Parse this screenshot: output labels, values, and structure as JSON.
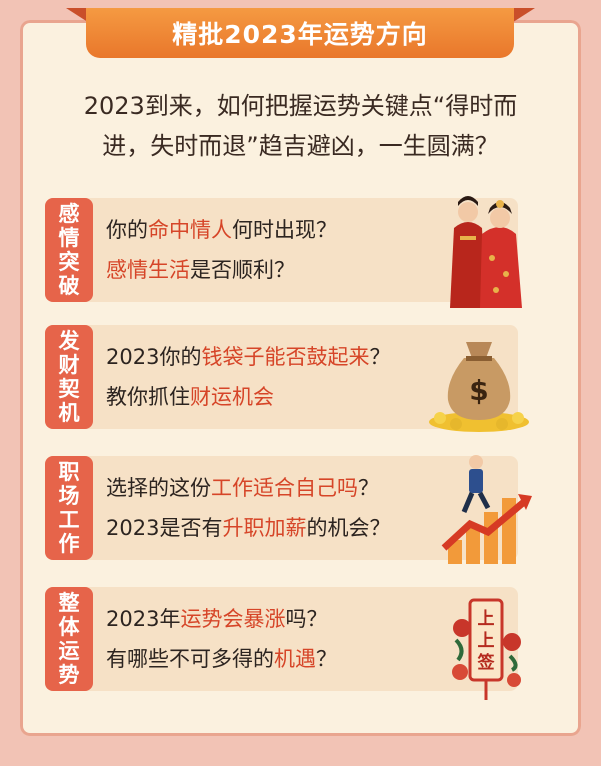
{
  "banner": {
    "title": "精批2023年运势方向"
  },
  "intro": {
    "line1": "2023到来，如何把握运势关键点“得时而",
    "line2": "进，失时而退”趋吉避凶，一生圆满？"
  },
  "cards": [
    {
      "tag": [
        "感",
        "情",
        "突",
        "破"
      ],
      "line1": {
        "a": "你的",
        "hl": "命中情人",
        "b": "何时出现？"
      },
      "line2": {
        "a": "",
        "hl": "感情生活",
        "b": "是否顺利？"
      },
      "icon": "wedding-couple-icon"
    },
    {
      "tag": [
        "发",
        "财",
        "契",
        "机"
      ],
      "line1": {
        "a": "2023你的",
        "hl": "钱袋子能否鼓起来",
        "b": "？"
      },
      "line2": {
        "a": "教你抓住",
        "hl": "财运机会",
        "b": ""
      },
      "icon": "money-bag-icon"
    },
    {
      "tag": [
        "职",
        "场",
        "工",
        "作"
      ],
      "line1": {
        "a": "选择的这份",
        "hl": "工作适合自己吗",
        "b": "？"
      },
      "line2": {
        "a": "2023是否有",
        "hl": "升职加薪",
        "b": "的机会？"
      },
      "icon": "career-growth-icon"
    },
    {
      "tag": [
        "整",
        "体",
        "运",
        "势"
      ],
      "line1": {
        "a": "2023年",
        "hl": "运势会暴涨",
        "b": "吗？"
      },
      "line2": {
        "a": "有哪些不可多得的",
        "hl": "机遇",
        "b": "？"
      },
      "icon": "fortune-lot-icon",
      "lot_text": "上上签"
    }
  ],
  "colors": {
    "accent": "#d64528",
    "tag_bg": "#e6644a",
    "banner": "#f0883a",
    "card_bg": "#f6e1c6"
  }
}
